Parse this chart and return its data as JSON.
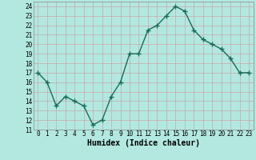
{
  "x": [
    0,
    1,
    2,
    3,
    4,
    5,
    6,
    7,
    8,
    9,
    10,
    11,
    12,
    13,
    14,
    15,
    16,
    17,
    18,
    19,
    20,
    21,
    22,
    23
  ],
  "y": [
    17,
    16,
    13.5,
    14.5,
    14,
    13.5,
    11.5,
    12,
    14.5,
    16,
    19,
    19,
    21.5,
    22,
    23,
    24,
    23.5,
    21.5,
    20.5,
    20,
    19.5,
    18.5,
    17,
    17
  ],
  "line_color": "#1a6b5a",
  "marker": "+",
  "markersize": 4,
  "linewidth": 1.0,
  "bg_color": "#b2e8e0",
  "grid_color": "#c8a8a8",
  "xlabel": "Humidex (Indice chaleur)",
  "xlabel_fontsize": 7,
  "tick_fontsize": 5.5,
  "ylim": [
    11,
    24.5
  ],
  "xlim": [
    -0.5,
    23.5
  ],
  "yticks": [
    11,
    12,
    13,
    14,
    15,
    16,
    17,
    18,
    19,
    20,
    21,
    22,
    23,
    24
  ],
  "xticks": [
    0,
    1,
    2,
    3,
    4,
    5,
    6,
    7,
    8,
    9,
    10,
    11,
    12,
    13,
    14,
    15,
    16,
    17,
    18,
    19,
    20,
    21,
    22,
    23
  ]
}
